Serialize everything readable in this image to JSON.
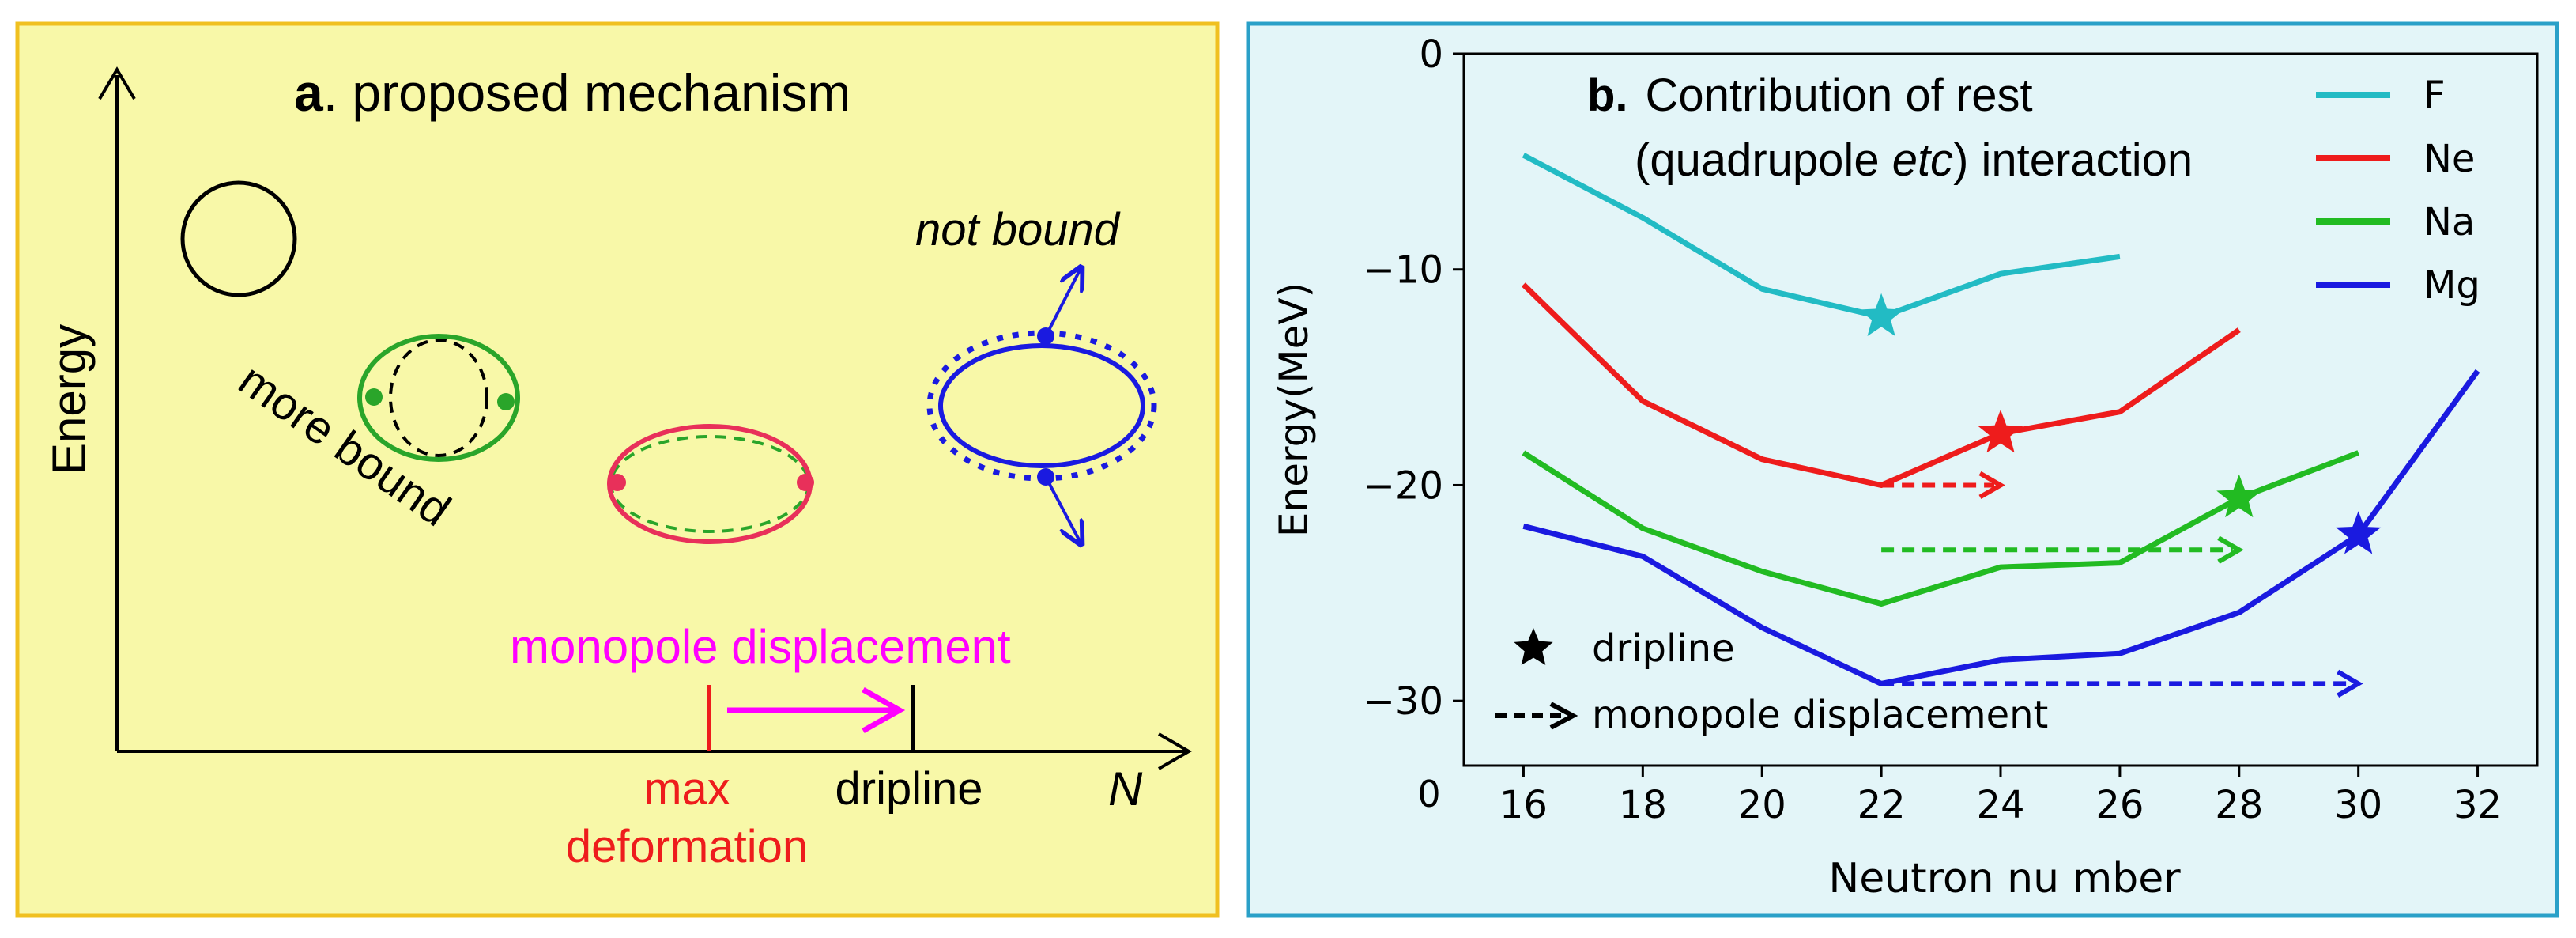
{
  "colors": {
    "panel_a_bg": "#f8f8a8",
    "panel_a_border": "#f0c020",
    "panel_b_bg": "#e3f5f8",
    "panel_b_border": "#2aa0c8",
    "F": "#22bbc4",
    "Ne": "#ee1c1c",
    "Na": "#22bb22",
    "Mg": "#1a1ae0",
    "magenta": "#ff00ff",
    "pink": "#e8305a"
  },
  "panel_a": {
    "title_bold": "a",
    "title_rest": ". proposed mechanism",
    "y_axis_label": "Energy",
    "x_axis_label": "N",
    "more_bound": "more bound",
    "not_bound": "not bound",
    "monopole_displacement": "monopole displacement",
    "max_line1": "max",
    "max_line2": "deformation",
    "dripline": "dripline"
  },
  "panel_b": {
    "title_bold": "b.",
    "title_line1": "Contribution of rest",
    "title_line2_pre": "(quadrupole ",
    "title_line2_it": "etc",
    "title_line2_post": ") interaction",
    "legend_dripline": "dripline",
    "legend_monopole": "monopole displacement",
    "bottom_zero": "0"
  },
  "chart_data": {
    "type": "line",
    "title": "Contribution of rest (quadrupole etc) interaction",
    "xlabel": "Neutron nu mber",
    "ylabel": "Energy(MeV)",
    "xlim": [
      15,
      33
    ],
    "ylim": [
      -33,
      0
    ],
    "xticks": [
      16,
      18,
      20,
      22,
      24,
      26,
      28,
      30,
      32
    ],
    "yticks": [
      0,
      -10,
      -20,
      -30
    ],
    "ytick_labels": [
      "0",
      "−10",
      "−20",
      "−30"
    ],
    "series": [
      {
        "name": "F",
        "x": [
          16,
          18,
          20,
          22,
          24,
          26
        ],
        "y": [
          -4.7,
          -7.6,
          -10.9,
          -12.2,
          -10.2,
          -9.4
        ],
        "dripline_x": 22
      },
      {
        "name": "Ne",
        "x": [
          16,
          18,
          20,
          22,
          24,
          26,
          28
        ],
        "y": [
          -10.7,
          -16.1,
          -18.8,
          -20.0,
          -17.6,
          -16.6,
          -12.8
        ],
        "dripline_x": 24
      },
      {
        "name": "Na",
        "x": [
          16,
          18,
          20,
          22,
          24,
          26,
          28,
          30
        ],
        "y": [
          -18.5,
          -22.0,
          -24.0,
          -25.5,
          -23.8,
          -23.6,
          -20.6,
          -18.5
        ],
        "dripline_x": 28
      },
      {
        "name": "Mg",
        "x": [
          16,
          18,
          20,
          22,
          24,
          26,
          28,
          30,
          32
        ],
        "y": [
          -21.9,
          -23.3,
          -26.6,
          -29.2,
          -28.1,
          -27.8,
          -25.9,
          -22.3,
          -14.7
        ],
        "dripline_x": 30
      }
    ],
    "monopole_arrows": [
      {
        "series": "Ne",
        "from_x": 22,
        "to_x": 24,
        "y": -20.0
      },
      {
        "series": "Na",
        "from_x": 22,
        "to_x": 28,
        "y": -23.0
      },
      {
        "series": "Mg",
        "from_x": 22,
        "to_x": 30,
        "y": -29.2
      }
    ]
  }
}
